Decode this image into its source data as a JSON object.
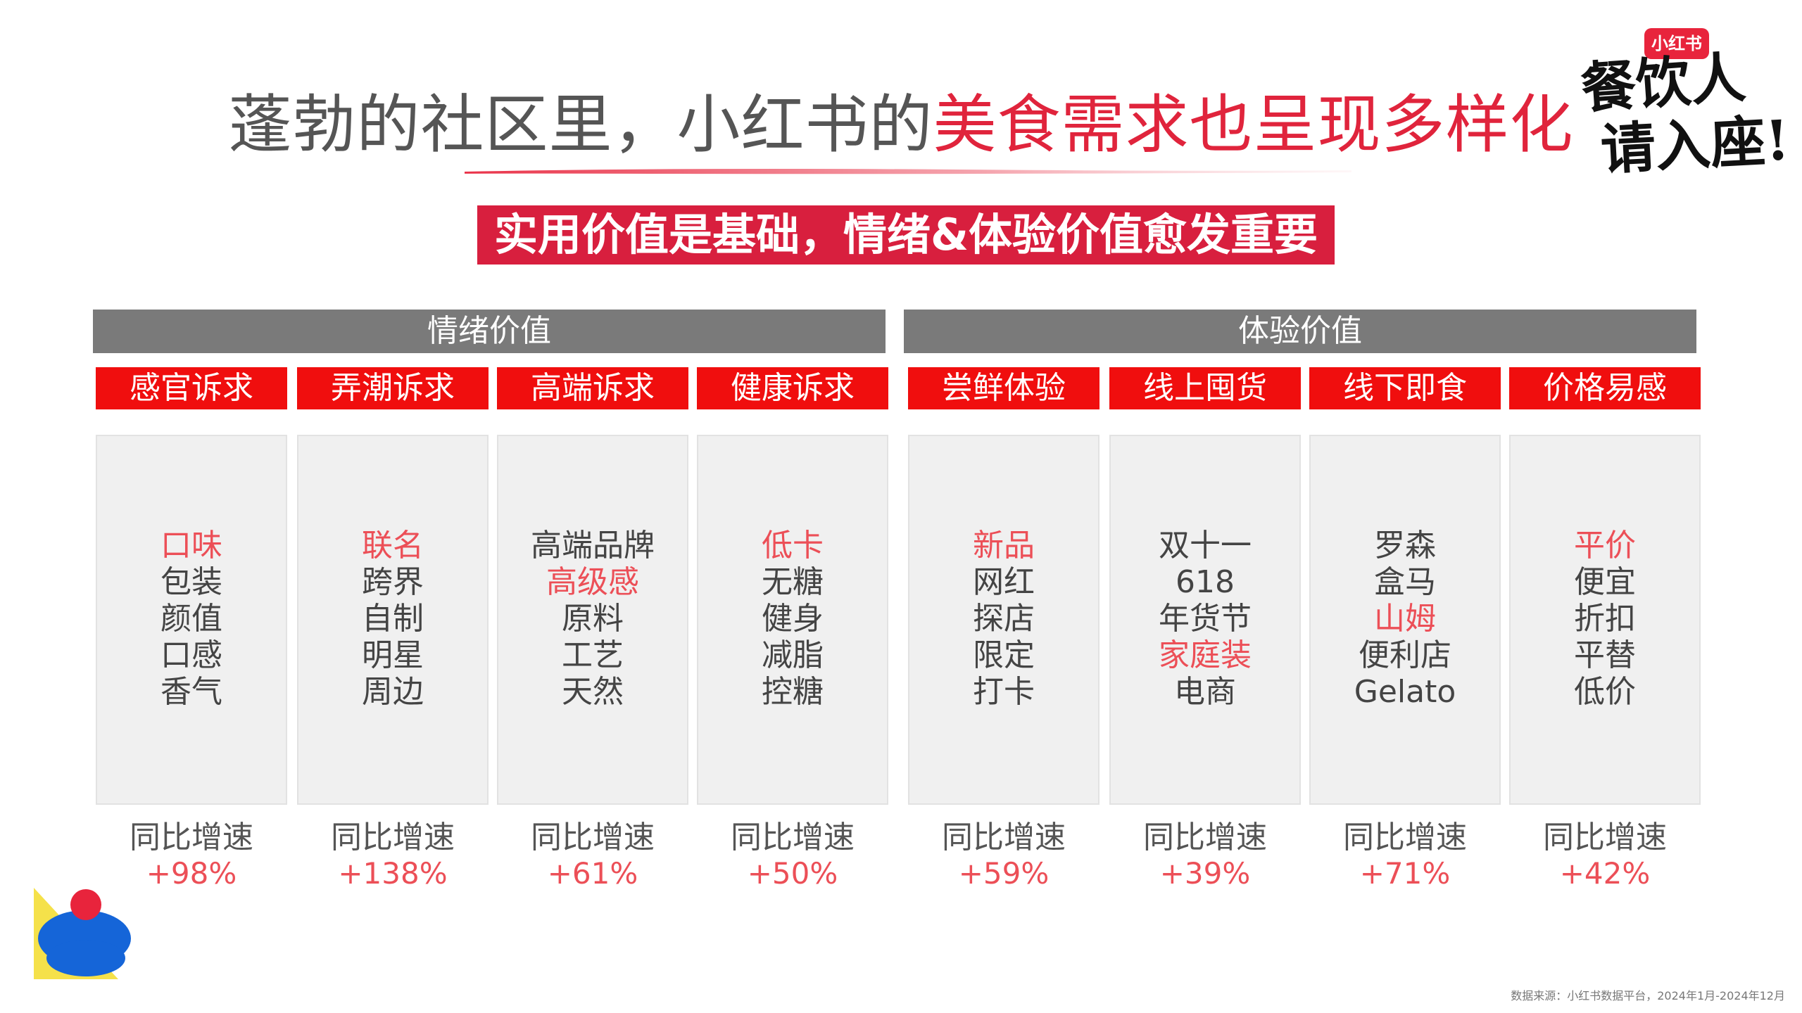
{
  "title": {
    "part1": "蓬勃的社区里，小红书的",
    "part2": "美食需求也呈现多样化"
  },
  "logo": {
    "badge": "小红书",
    "line1": "餐饮人",
    "line2": "请入座!"
  },
  "subtitle": "实用价值是基础，情绪&体验价值愈发重要",
  "groups": [
    {
      "label": "情绪价值"
    },
    {
      "label": "体验价值"
    }
  ],
  "growth_label": "同比增速",
  "columns": [
    {
      "category": "感官诉求",
      "keywords": [
        {
          "text": "口味",
          "hl": true
        },
        {
          "text": "包装"
        },
        {
          "text": "颜值"
        },
        {
          "text": "口感"
        },
        {
          "text": "香气"
        }
      ],
      "growth": "+98%"
    },
    {
      "category": "弄潮诉求",
      "keywords": [
        {
          "text": "联名",
          "hl": true
        },
        {
          "text": "跨界"
        },
        {
          "text": "自制"
        },
        {
          "text": "明星"
        },
        {
          "text": "周边"
        }
      ],
      "growth": "+138%"
    },
    {
      "category": "高端诉求",
      "keywords": [
        {
          "text": "高端品牌"
        },
        {
          "text": "高级感",
          "hl": true
        },
        {
          "text": "原料"
        },
        {
          "text": "工艺"
        },
        {
          "text": "天然"
        }
      ],
      "growth": "+61%"
    },
    {
      "category": "健康诉求",
      "keywords": [
        {
          "text": "低卡",
          "hl": true
        },
        {
          "text": "无糖"
        },
        {
          "text": "健身"
        },
        {
          "text": "减脂"
        },
        {
          "text": "控糖"
        }
      ],
      "growth": "+50%"
    },
    {
      "category": "尝鲜体验",
      "keywords": [
        {
          "text": "新品",
          "hl": true
        },
        {
          "text": "网红"
        },
        {
          "text": "探店"
        },
        {
          "text": "限定"
        },
        {
          "text": "打卡"
        }
      ],
      "growth": "+59%"
    },
    {
      "category": "线上囤货",
      "keywords": [
        {
          "text": "双十一"
        },
        {
          "text": "618"
        },
        {
          "text": "年货节"
        },
        {
          "text": "家庭装",
          "hl": true
        },
        {
          "text": "电商"
        }
      ],
      "growth": "+39%"
    },
    {
      "category": "线下即食",
      "keywords": [
        {
          "text": "罗森"
        },
        {
          "text": "盒马"
        },
        {
          "text": "山姆",
          "hl": true
        },
        {
          "text": "便利店"
        },
        {
          "text": "Gelato"
        }
      ],
      "growth": "+71%"
    },
    {
      "category": "价格易感",
      "keywords": [
        {
          "text": "平价",
          "hl": true
        },
        {
          "text": "便宜"
        },
        {
          "text": "折扣"
        },
        {
          "text": "平替"
        },
        {
          "text": "低价"
        }
      ],
      "growth": "+42%"
    }
  ],
  "source": "数据来源：小红书数据平台，2024年1月-2024年12月",
  "colors": {
    "brand_red": "#e0243c",
    "category_red": "#f00e0e",
    "highlight_red": "#ec4f57",
    "group_gray": "#7a7a7a"
  }
}
